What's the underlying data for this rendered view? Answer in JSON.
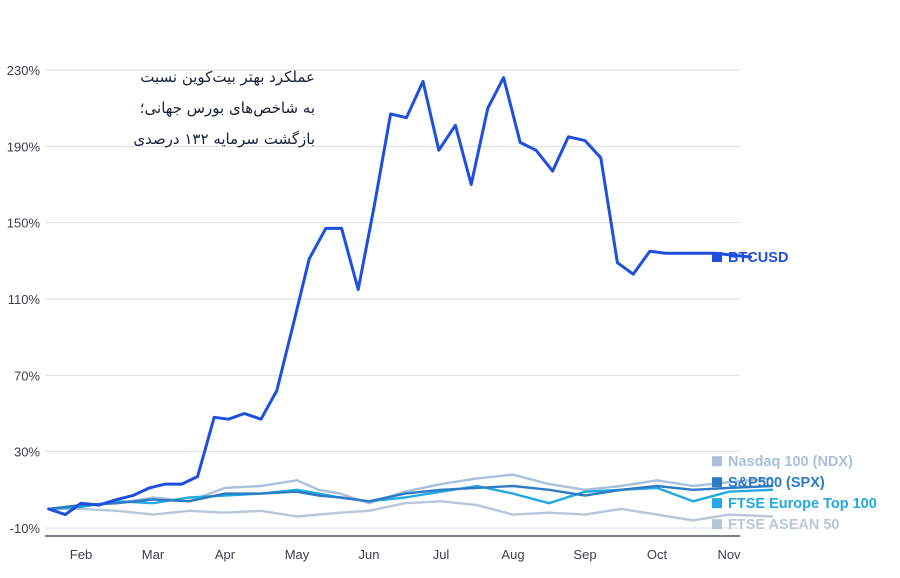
{
  "chart_data": {
    "type": "line",
    "title_lines": [
      "عملکرد بهتر بیت‌کوین نسبت",
      "به شاخص‌های بورس جهانی؛",
      "بازگشت سرمایه ۱۳۲ درصدی"
    ],
    "yticks": [
      "230%",
      "190%",
      "150%",
      "110%",
      "70%",
      "30%",
      "-10%"
    ],
    "ytick_values": [
      230,
      190,
      150,
      110,
      70,
      30,
      -10
    ],
    "ylim": [
      -10,
      230
    ],
    "xticks": [
      "Feb",
      "Mar",
      "Apr",
      "May",
      "Jun",
      "Jul",
      "Aug",
      "Sep",
      "Oct",
      "Nov"
    ],
    "xlim": [
      0,
      10
    ],
    "grid": true,
    "legend_position": "right",
    "series": [
      {
        "name": "BTCUSD",
        "color": "#1f4fe0",
        "x": [
          -0.45,
          -0.22,
          0.0,
          0.25,
          0.5,
          0.72,
          0.95,
          1.17,
          1.4,
          1.62,
          1.85,
          2.05,
          2.27,
          2.5,
          2.72,
          2.95,
          3.17,
          3.4,
          3.62,
          3.85,
          4.07,
          4.3,
          4.52,
          4.75,
          4.97,
          5.2,
          5.42,
          5.65,
          5.87,
          6.1,
          6.32,
          6.55,
          6.77,
          7.0,
          7.22,
          7.45,
          7.67,
          7.9,
          8.12,
          8.35,
          8.57,
          8.8,
          9.3
        ],
        "y": [
          0,
          -3,
          3,
          2,
          5,
          7,
          11,
          13,
          13,
          17,
          48,
          47,
          50,
          47,
          62,
          97,
          131,
          147,
          147,
          115,
          158,
          207,
          205,
          224,
          188,
          201,
          170,
          210,
          226,
          192,
          188,
          177,
          195,
          193,
          184,
          129,
          123,
          135,
          134,
          134,
          134,
          134,
          132
        ]
      },
      {
        "name": "Nasdaq 100 (NDX)",
        "color": "#a9bfdc",
        "x": [
          -0.45,
          0.0,
          0.5,
          1.0,
          1.5,
          2.0,
          2.5,
          3.0,
          3.3,
          3.6,
          4.0,
          4.5,
          5.0,
          5.5,
          6.0,
          6.5,
          7.0,
          7.5,
          8.0,
          8.5,
          9.0,
          9.6
        ],
        "y": [
          0,
          2,
          3,
          6,
          4,
          11,
          12,
          15,
          10,
          8,
          3,
          9,
          13,
          16,
          18,
          13,
          10,
          12,
          15,
          12,
          14,
          16
        ]
      },
      {
        "name": "S&P500 (SPX)",
        "color": "#2b7cc4",
        "x": [
          -0.45,
          0.0,
          0.5,
          1.0,
          1.5,
          2.0,
          2.5,
          3.0,
          3.3,
          3.6,
          4.0,
          4.5,
          5.0,
          5.5,
          6.0,
          6.5,
          7.0,
          7.5,
          8.0,
          8.5,
          9.0,
          9.6
        ],
        "y": [
          0,
          2,
          3,
          5,
          4,
          8,
          8,
          9,
          7,
          6,
          4,
          8,
          10,
          11,
          12,
          10,
          7,
          10,
          12,
          10,
          11,
          12
        ]
      },
      {
        "name": "FTSE Europe Top 100",
        "color": "#23a9e1",
        "x": [
          -0.45,
          0.0,
          0.5,
          1.0,
          1.5,
          2.0,
          2.5,
          3.0,
          3.3,
          3.6,
          4.0,
          4.5,
          5.0,
          5.5,
          6.0,
          6.5,
          7.0,
          7.5,
          8.0,
          8.5,
          9.0,
          9.6
        ],
        "y": [
          0,
          1,
          4,
          3,
          6,
          7,
          8,
          10,
          8,
          6,
          4,
          6,
          9,
          12,
          8,
          3,
          9,
          10,
          11,
          4,
          9,
          10
        ]
      },
      {
        "name": "FTSE ASEAN 50",
        "color": "#b8c6db",
        "x": [
          -0.45,
          0.0,
          0.5,
          1.0,
          1.5,
          2.0,
          2.5,
          3.0,
          3.3,
          3.6,
          4.0,
          4.5,
          5.0,
          5.5,
          6.0,
          6.5,
          7.0,
          7.5,
          8.0,
          8.5,
          9.0,
          9.6
        ],
        "y": [
          0,
          0,
          -1,
          -3,
          -1,
          -2,
          -1,
          -4,
          -3,
          -2,
          -1,
          3,
          4,
          2,
          -3,
          -2,
          -3,
          0,
          -3,
          -6,
          -3,
          -4
        ]
      }
    ],
    "end_labels": [
      {
        "text": "BTCUSD",
        "color": "#1f4fe0",
        "y": 132
      },
      {
        "text": "Nasdaq 100 (NDX)",
        "color": "#a9bfdc",
        "y": 25
      },
      {
        "text": "S&P500 (SPX)",
        "color": "#2b7cc4",
        "y": 14
      },
      {
        "text": "FTSE Europe Top 100",
        "color": "#23a9e1",
        "y": 3
      },
      {
        "text": "FTSE ASEAN 50",
        "color": "#b8c6db",
        "y": -8
      }
    ]
  }
}
